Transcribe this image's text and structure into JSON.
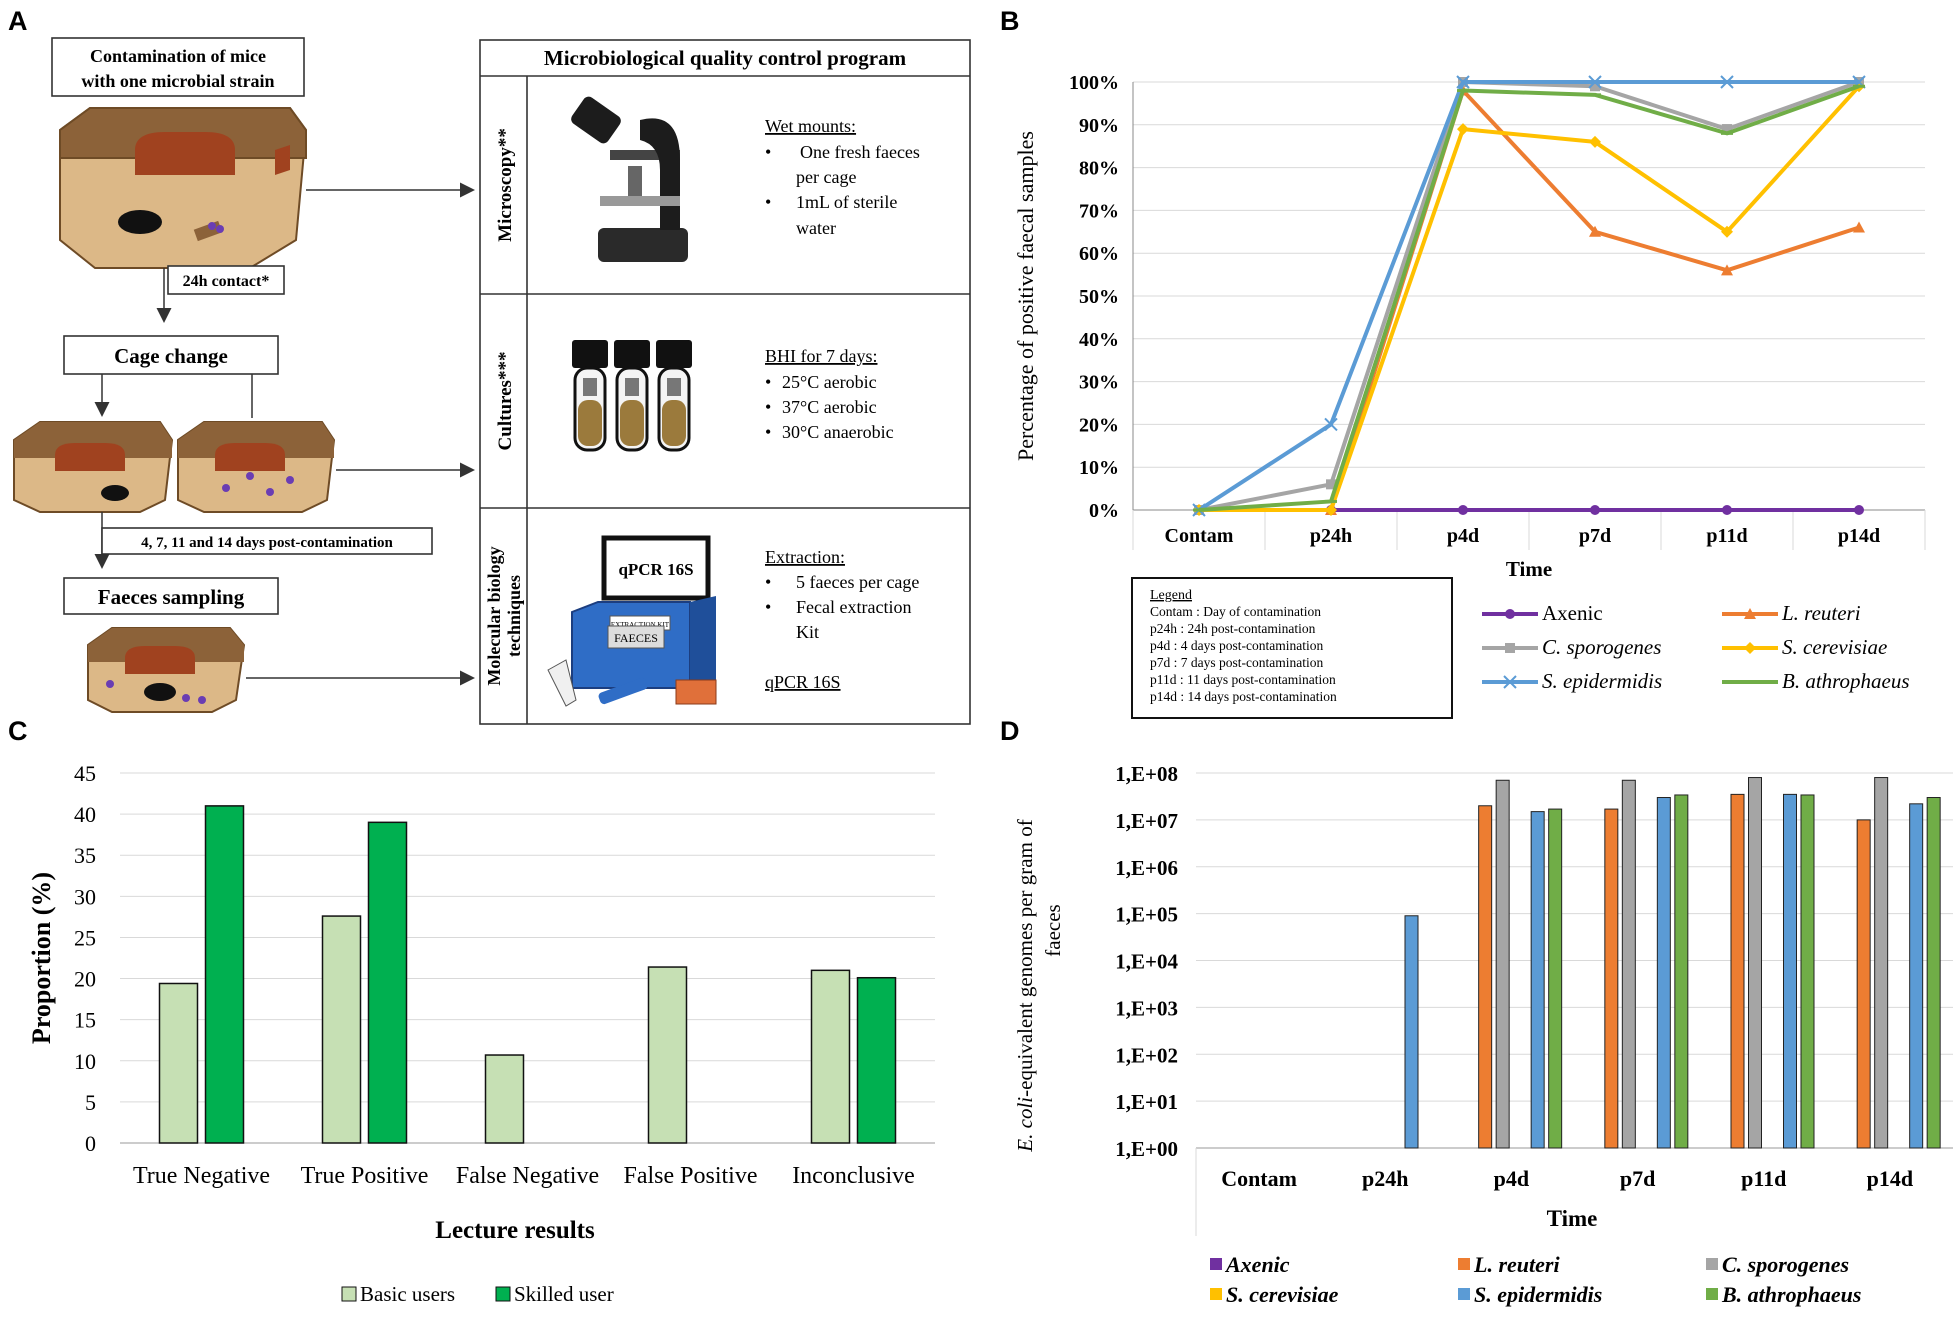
{
  "panels": {
    "a": "A",
    "b": "B",
    "c": "C",
    "d": "D"
  },
  "panel_a": {
    "flow": {
      "contamination": [
        "Contamination of mice",
        "with one microbial strain"
      ],
      "contact": "24h contact*",
      "cage_change": "Cage change",
      "days": "4, 7, 11 and 14 days post-contamination",
      "sampling": "Faeces sampling"
    },
    "program": {
      "title": "Microbiological quality control program",
      "microscopy": {
        "label": "Microscopy**",
        "heading": "Wet mounts:",
        "lines": [
          "One fresh faeces",
          "per cage",
          "1mL of sterile",
          "water"
        ]
      },
      "cultures": {
        "label": "Cultures***",
        "heading": "BHI for 7 days:",
        "lines": [
          "25°C aerobic",
          "37°C aerobic",
          "30°C anaerobic"
        ]
      },
      "molecular": {
        "label": [
          "Molecular biology",
          "techniques"
        ],
        "heading": "Extraction:",
        "lines": [
          "5 faeces per cage",
          "Fecal extraction",
          "Kit"
        ],
        "footer": "qPCR 16S",
        "monitor": "qPCR 16S",
        "box_label": "FAECES",
        "box_top": "EXTRACTION KIT"
      }
    }
  },
  "chart_data": [
    {
      "id": "B",
      "type": "line",
      "title": "",
      "xlabel": "Time",
      "ylabel": "Percentage of positive faecal samples",
      "categories": [
        "Contam",
        "p24h",
        "p4d",
        "p7d",
        "p11d",
        "p14d"
      ],
      "ylim": [
        0,
        100
      ],
      "yticks": [
        "0%",
        "10%",
        "20%",
        "30%",
        "40%",
        "50%",
        "60%",
        "70%",
        "80%",
        "90%",
        "100%"
      ],
      "series": [
        {
          "name": "Axenic",
          "color": "#7030a0",
          "marker": "circle",
          "values": [
            0,
            0,
            0,
            0,
            0,
            0
          ]
        },
        {
          "name": "L. reuteri",
          "color": "#ed7d31",
          "marker": "triangle",
          "values": [
            0,
            0,
            98,
            65,
            56,
            66
          ]
        },
        {
          "name": "C. sporogenes",
          "color": "#a5a5a5",
          "marker": "square",
          "values": [
            0,
            6,
            100,
            99,
            89,
            100
          ]
        },
        {
          "name": "S. cerevisiae",
          "color": "#ffc000",
          "marker": "diamond",
          "values": [
            0,
            0,
            89,
            86,
            65,
            99
          ]
        },
        {
          "name": "S. epidermidis",
          "color": "#5b9bd5",
          "marker": "x",
          "values": [
            0,
            20,
            100,
            100,
            100,
            100
          ]
        },
        {
          "name": "B. athrophaeus",
          "color": "#70ad47",
          "marker": "dash",
          "values": [
            0,
            2,
            98,
            97,
            88,
            99
          ]
        }
      ],
      "legend_box": {
        "title": "Legend",
        "lines": [
          "Contam : Day of contamination",
          "p24h : 24h post-contamination",
          "p4d : 4 days post-contamination",
          "p7d : 7 days post-contamination",
          "p11d : 11 days post-contamination",
          "p14d : 14 days post-contamination"
        ]
      }
    },
    {
      "id": "C",
      "type": "bar",
      "title": "",
      "xlabel": "Lecture results",
      "ylabel": "Proportion (%)",
      "categories": [
        "True Negative",
        "True Positive",
        "False Negative",
        "False Positive",
        "Inconclusive"
      ],
      "ylim": [
        0,
        45
      ],
      "yticks": [
        "0",
        "5",
        "10",
        "15",
        "20",
        "25",
        "30",
        "35",
        "40",
        "45"
      ],
      "series": [
        {
          "name": "Basic users",
          "color": "#c6e0b4",
          "values": [
            19.4,
            27.6,
            10.7,
            21.4,
            21.0
          ]
        },
        {
          "name": "Skilled user",
          "color": "#00b050",
          "values": [
            41.0,
            39.0,
            0,
            0,
            20.1
          ]
        }
      ]
    },
    {
      "id": "D",
      "type": "bar",
      "title": "",
      "xlabel": "Time",
      "ylabel_italic": "E. coli",
      "ylabel": "-equivalent genomes per gram of",
      "ylabel2": "faeces",
      "scale": "log10",
      "categories": [
        "Contam",
        "p24h",
        "p4d",
        "p7d",
        "p11d",
        "p14d"
      ],
      "ylim": [
        1,
        100000000
      ],
      "yticks": [
        "1,E+00",
        "1,E+01",
        "1,E+02",
        "1,E+03",
        "1,E+04",
        "1,E+05",
        "1,E+06",
        "1,E+07",
        "1,E+08"
      ],
      "series": [
        {
          "name": "Axenic",
          "color": "#7030a0",
          "values": [
            0,
            0,
            0,
            0,
            0,
            0
          ]
        },
        {
          "name": "L. reuteri",
          "color": "#ed7d31",
          "values": [
            0,
            0,
            20000000,
            17000000,
            35000000,
            10000000
          ]
        },
        {
          "name": "C. sporogenes",
          "color": "#a5a5a5",
          "values": [
            0,
            0,
            70000000,
            70000000,
            80000000,
            80000000
          ]
        },
        {
          "name": "S. cerevisiae",
          "color": "#ffc000",
          "values": [
            0,
            0,
            0,
            0,
            0,
            0
          ]
        },
        {
          "name": "S. epidermidis",
          "color": "#5b9bd5",
          "values": [
            0,
            90000,
            15000000,
            30000000,
            35000000,
            22000000
          ]
        },
        {
          "name": "B. athrophaeus",
          "color": "#70ad47",
          "values": [
            0,
            0,
            17000000,
            34000000,
            34000000,
            30000000
          ]
        }
      ]
    }
  ]
}
